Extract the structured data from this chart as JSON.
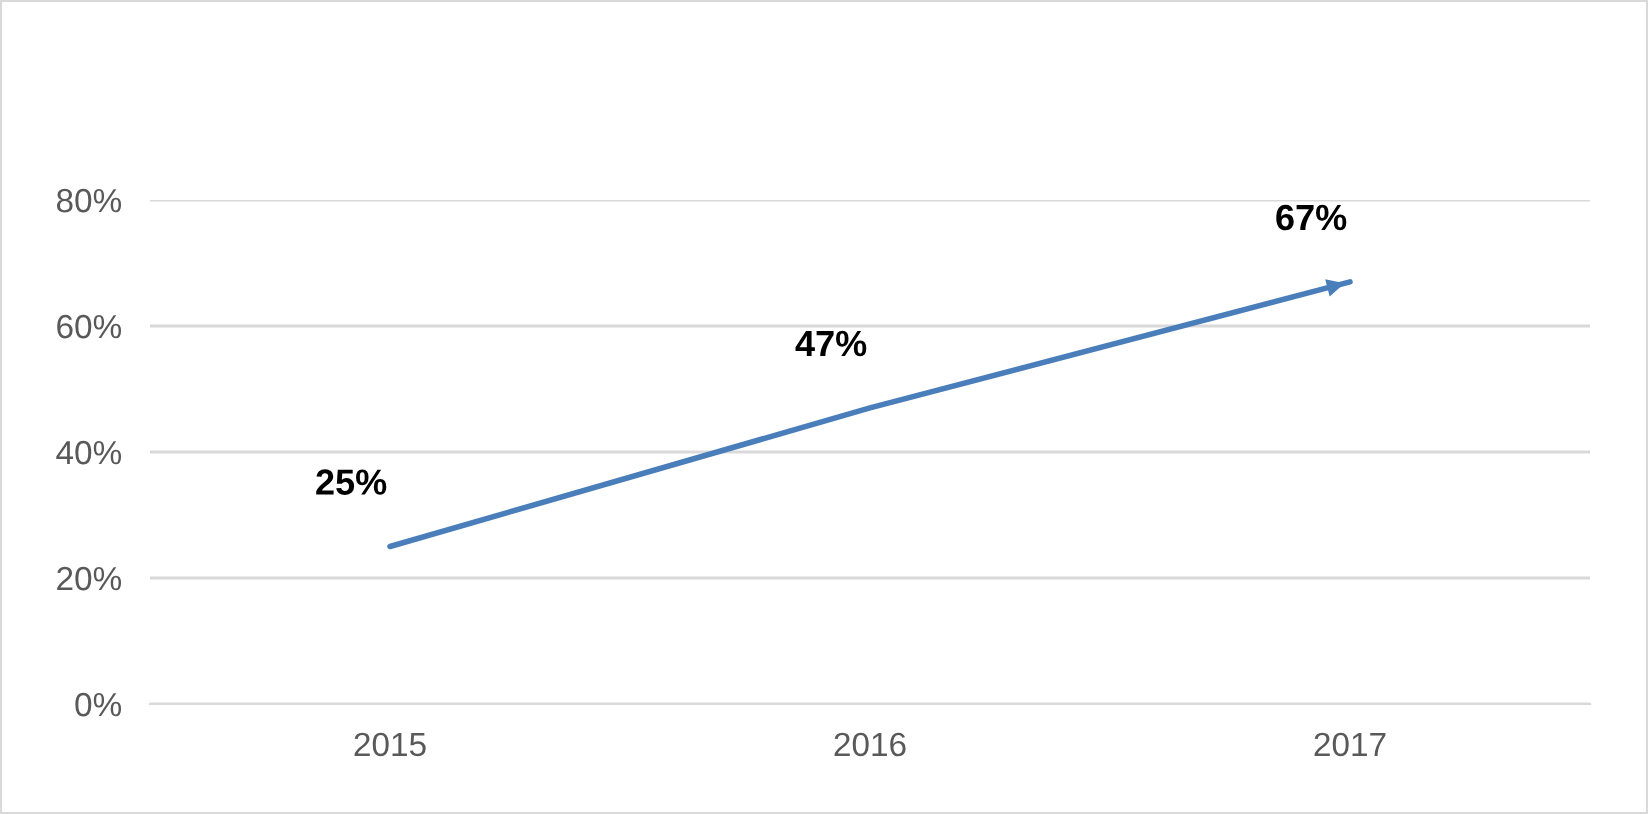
{
  "chart_data": {
    "type": "line",
    "categories": [
      "2015",
      "2016",
      "2017"
    ],
    "series": [
      {
        "color": "#4a7ebb",
        "values": [
          25,
          47,
          67
        ],
        "value_labels": [
          "25%",
          "47%",
          "67%"
        ]
      }
    ],
    "ylim": [
      0,
      80
    ],
    "yticks": [
      {
        "value": 0,
        "label": "0%"
      },
      {
        "value": 20,
        "label": "20%"
      },
      {
        "value": 40,
        "label": "40%"
      },
      {
        "value": 60,
        "label": "60%"
      },
      {
        "value": 80,
        "label": "80%"
      }
    ],
    "grid": "y",
    "marker": "none",
    "line_style": "solid",
    "legend": false
  }
}
